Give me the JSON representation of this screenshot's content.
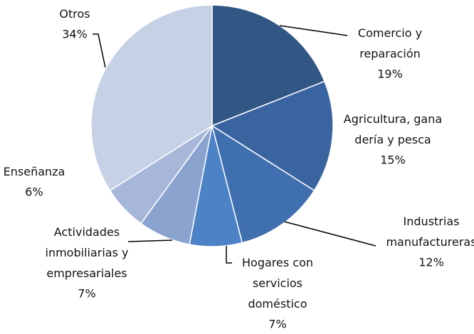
{
  "chart_data": {
    "type": "pie",
    "categories": [
      "Comercio y\nreparación",
      "Agricultura, gana\ndería y pesca",
      "Industrias\nmanufactureras",
      "Hogares con\nservicios\ndoméstico",
      "Actividades\ninmobiliarias y\nempresariales",
      "Enseñanza",
      "Otros"
    ],
    "values": [
      19,
      15,
      12,
      7,
      7,
      6,
      34
    ],
    "value_labels": [
      "19%",
      "15%",
      "12%",
      "7%",
      "7%",
      "6%",
      "34%"
    ],
    "colors": [
      "#325784",
      "#3a64a0",
      "#3f6fae",
      "#4c82c6",
      "#8aa3cf",
      "#a6b7d9",
      "#c6d1e5"
    ]
  }
}
